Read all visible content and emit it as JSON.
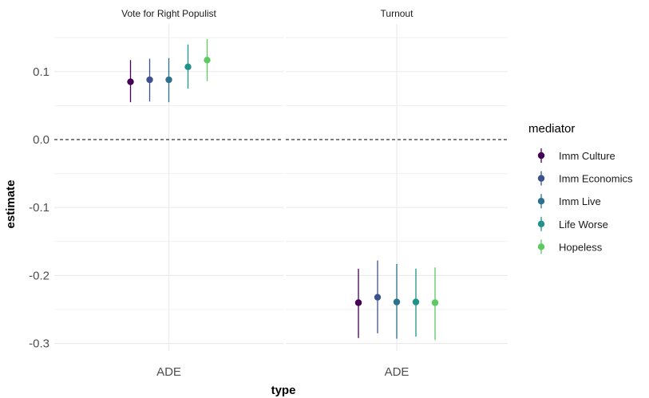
{
  "chart_data": {
    "type": "scatter",
    "subtype": "faceted point-range with error bars",
    "ylabel": "estimate",
    "xlabel": "type",
    "ylim": [
      -0.31,
      0.15
    ],
    "y_ticks": [
      0.1,
      0.0,
      -0.1,
      -0.2,
      -0.3
    ],
    "y_tick_labels": [
      "0.1",
      "0.0",
      "-0.1",
      "-0.2",
      "-0.3"
    ],
    "reference_line": 0,
    "grid": true,
    "legend": {
      "title": "mediator",
      "position": "right"
    },
    "facets": [
      {
        "title": "Vote for Right Populist",
        "category": "ADE",
        "series": [
          {
            "name": "Imm Culture",
            "estimate": 0.085,
            "low": 0.055,
            "high": 0.117
          },
          {
            "name": "Imm Economics",
            "estimate": 0.088,
            "low": 0.056,
            "high": 0.119
          },
          {
            "name": "Imm Live",
            "estimate": 0.088,
            "low": 0.055,
            "high": 0.12
          },
          {
            "name": "Life Worse",
            "estimate": 0.107,
            "low": 0.075,
            "high": 0.14
          },
          {
            "name": "Hopeless",
            "estimate": 0.117,
            "low": 0.086,
            "high": 0.148
          }
        ]
      },
      {
        "title": "Turnout",
        "category": "ADE",
        "series": [
          {
            "name": "Imm Culture",
            "estimate": -0.24,
            "low": -0.292,
            "high": -0.19
          },
          {
            "name": "Imm Economics",
            "estimate": -0.232,
            "low": -0.285,
            "high": -0.178
          },
          {
            "name": "Imm Live",
            "estimate": -0.239,
            "low": -0.293,
            "high": -0.183
          },
          {
            "name": "Life Worse",
            "estimate": -0.239,
            "low": -0.29,
            "high": -0.19
          },
          {
            "name": "Hopeless",
            "estimate": -0.24,
            "low": -0.295,
            "high": -0.188
          }
        ]
      }
    ],
    "colors": {
      "Imm Culture": "#440154",
      "Imm Economics": "#3b528b",
      "Imm Live": "#2c728e",
      "Life Worse": "#21918c",
      "Hopeless": "#5ec962"
    }
  }
}
